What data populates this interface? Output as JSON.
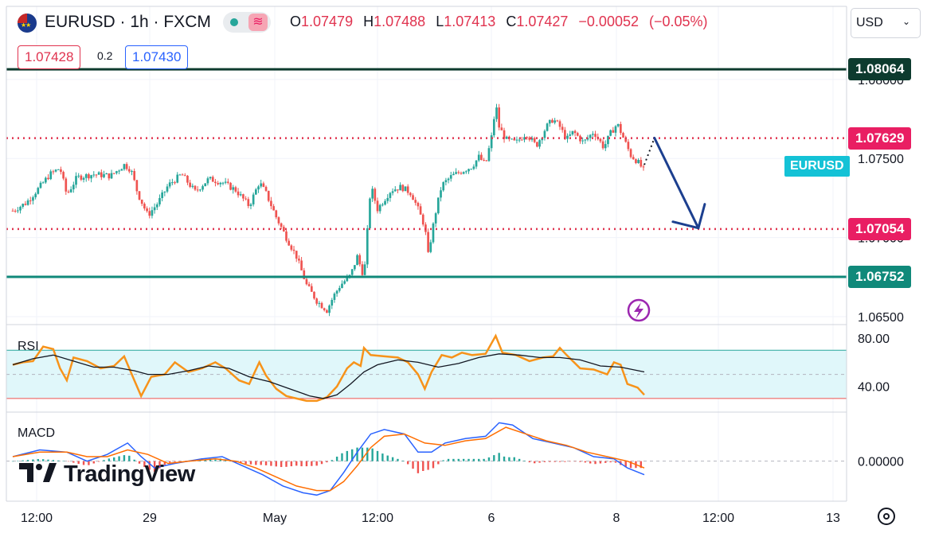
{
  "header": {
    "symbol": "EURUSD",
    "interval": "1h",
    "exchange": "FXCM",
    "title": "EURUSD · 1h · FXCM",
    "ohlc": {
      "o_label": "O",
      "o": "1.07479",
      "h_label": "H",
      "h": "1.07488",
      "l_label": "L",
      "l": "1.07413",
      "c_label": "C",
      "c": "1.07427",
      "change": "−0.00052",
      "change_pct": "(−0.05%)"
    },
    "currency": "USD"
  },
  "trade": {
    "sell_price": "1.07428",
    "spread": "0.2",
    "buy_price": "1.07430"
  },
  "levels": [
    {
      "value": "1.08064",
      "color": "#0d3b2e",
      "style": "solid"
    },
    {
      "value": "1.07629",
      "color": "#e0334f",
      "style": "dotted"
    },
    {
      "value": "1.07054",
      "color": "#e0334f",
      "style": "dotted"
    },
    {
      "value": "1.06752",
      "color": "#10897a",
      "style": "solid"
    }
  ],
  "symbol_tag": "EURUSD",
  "colors": {
    "up": "#26a69a",
    "down": "#ef5350",
    "rsi": "#f7931a",
    "rsi_ma": "#131722",
    "macd": "#2962ff",
    "signal": "#ff6d00",
    "arrow": "#1c3f8f"
  },
  "rsi_label": "RSI",
  "macd_label": "MACD",
  "brand": "TradingView",
  "chart_data": {
    "type": "candlestick",
    "price_axis": {
      "ylim": [
        1.0645,
        1.0815
      ],
      "ticks": [
        "1.08000",
        "1.07500",
        "1.07000",
        "1.06500"
      ]
    },
    "time_axis": {
      "ticks": [
        "12:00",
        "29",
        "May",
        "12:00",
        "6",
        "8",
        "12:00",
        "13"
      ]
    },
    "anchors": [
      [
        0,
        1.0717
      ],
      [
        4,
        1.0722
      ],
      [
        8,
        1.0732
      ],
      [
        11,
        1.074
      ],
      [
        14,
        1.0744
      ],
      [
        16,
        1.0727
      ],
      [
        19,
        1.0738
      ],
      [
        24,
        1.074
      ],
      [
        29,
        1.0739
      ],
      [
        33,
        1.0746
      ],
      [
        35,
        1.0743
      ],
      [
        37,
        1.0728
      ],
      [
        40,
        1.0714
      ],
      [
        43,
        1.0722
      ],
      [
        46,
        1.0733
      ],
      [
        50,
        1.074
      ],
      [
        54,
        1.0729
      ],
      [
        58,
        1.0737
      ],
      [
        62,
        1.0735
      ],
      [
        66,
        1.073
      ],
      [
        70,
        1.072
      ],
      [
        73,
        1.0735
      ],
      [
        75,
        1.0728
      ],
      [
        78,
        1.0713
      ],
      [
        81,
        1.07
      ],
      [
        84,
        1.0688
      ],
      [
        87,
        1.067
      ],
      [
        90,
        1.066
      ],
      [
        93,
        1.0654
      ],
      [
        95,
        1.0663
      ],
      [
        97,
        1.067
      ],
      [
        100,
        1.0676
      ],
      [
        102,
        1.0688
      ],
      [
        104,
        1.0675
      ],
      [
        106,
        1.0733
      ],
      [
        108,
        1.0718
      ],
      [
        112,
        1.073
      ],
      [
        115,
        1.0732
      ],
      [
        118,
        1.0728
      ],
      [
        120,
        1.0718
      ],
      [
        122,
        1.0707
      ],
      [
        123,
        1.0689
      ],
      [
        125,
        1.0714
      ],
      [
        127,
        1.0733
      ],
      [
        130,
        1.0739
      ],
      [
        133,
        1.0742
      ],
      [
        136,
        1.0745
      ],
      [
        138,
        1.0751
      ],
      [
        140,
        1.0746
      ],
      [
        142,
        1.0766
      ],
      [
        143,
        1.0785
      ],
      [
        144,
        1.077
      ],
      [
        146,
        1.0762
      ],
      [
        149,
        1.076
      ],
      [
        152,
        1.0766
      ],
      [
        155,
        1.0758
      ],
      [
        158,
        1.077
      ],
      [
        160,
        1.0775
      ],
      [
        162,
        1.077
      ],
      [
        164,
        1.0762
      ],
      [
        166,
        1.0767
      ],
      [
        169,
        1.076
      ],
      [
        172,
        1.0767
      ],
      [
        175,
        1.0757
      ],
      [
        177,
        1.0766
      ],
      [
        179,
        1.0772
      ],
      [
        181,
        1.0762
      ],
      [
        183,
        1.0752
      ],
      [
        185,
        1.0748
      ],
      [
        187,
        1.0742
      ]
    ],
    "rsi": {
      "ylim": [
        20,
        90
      ],
      "ticks": [
        "80.00",
        "40.00"
      ],
      "band": [
        30,
        70
      ],
      "values": [
        [
          0,
          58
        ],
        [
          3,
          60
        ],
        [
          6,
          61
        ],
        [
          9,
          73
        ],
        [
          12,
          71
        ],
        [
          14,
          55
        ],
        [
          16,
          45
        ],
        [
          18,
          64
        ],
        [
          22,
          61
        ],
        [
          26,
          55
        ],
        [
          30,
          57
        ],
        [
          33,
          65
        ],
        [
          36,
          45
        ],
        [
          38,
          32
        ],
        [
          41,
          48
        ],
        [
          45,
          50
        ],
        [
          48,
          60
        ],
        [
          52,
          52
        ],
        [
          56,
          55
        ],
        [
          60,
          60
        ],
        [
          63,
          55
        ],
        [
          67,
          45
        ],
        [
          70,
          42
        ],
        [
          73,
          60
        ],
        [
          75,
          49
        ],
        [
          78,
          38
        ],
        [
          81,
          32
        ],
        [
          84,
          30
        ],
        [
          87,
          28
        ],
        [
          90,
          28
        ],
        [
          93,
          31
        ],
        [
          96,
          40
        ],
        [
          99,
          55
        ],
        [
          101,
          60
        ],
        [
          103,
          57
        ],
        [
          104,
          72
        ],
        [
          106,
          66
        ],
        [
          110,
          65
        ],
        [
          114,
          64
        ],
        [
          117,
          60
        ],
        [
          120,
          50
        ],
        [
          122,
          38
        ],
        [
          124,
          52
        ],
        [
          127,
          66
        ],
        [
          130,
          64
        ],
        [
          133,
          68
        ],
        [
          136,
          66
        ],
        [
          140,
          67
        ],
        [
          143,
          82
        ],
        [
          145,
          68
        ],
        [
          149,
          66
        ],
        [
          153,
          61
        ],
        [
          157,
          64
        ],
        [
          160,
          65
        ],
        [
          162,
          72
        ],
        [
          164,
          66
        ],
        [
          168,
          55
        ],
        [
          172,
          54
        ],
        [
          176,
          50
        ],
        [
          178,
          60
        ],
        [
          180,
          58
        ],
        [
          182,
          42
        ],
        [
          185,
          39
        ],
        [
          187,
          33
        ]
      ],
      "ma": [
        [
          0,
          58
        ],
        [
          6,
          63
        ],
        [
          12,
          66
        ],
        [
          18,
          61
        ],
        [
          24,
          56
        ],
        [
          30,
          56
        ],
        [
          36,
          53
        ],
        [
          40,
          50
        ],
        [
          46,
          50
        ],
        [
          52,
          53
        ],
        [
          58,
          57
        ],
        [
          64,
          55
        ],
        [
          70,
          48
        ],
        [
          76,
          44
        ],
        [
          82,
          38
        ],
        [
          88,
          32
        ],
        [
          92,
          30
        ],
        [
          96,
          33
        ],
        [
          100,
          42
        ],
        [
          104,
          52
        ],
        [
          108,
          58
        ],
        [
          114,
          62
        ],
        [
          120,
          60
        ],
        [
          126,
          56
        ],
        [
          132,
          59
        ],
        [
          138,
          64
        ],
        [
          144,
          67
        ],
        [
          150,
          66
        ],
        [
          156,
          64
        ],
        [
          162,
          64
        ],
        [
          168,
          62
        ],
        [
          174,
          57
        ],
        [
          180,
          56
        ],
        [
          187,
          52
        ]
      ]
    },
    "macd": {
      "ylim": [
        -0.0017,
        0.0021
      ],
      "ticks": [
        "0.00000"
      ],
      "macd": [
        [
          0,
          0.0002
        ],
        [
          8,
          0.0005
        ],
        [
          16,
          0.0004
        ],
        [
          22,
          0.0
        ],
        [
          28,
          0.0003
        ],
        [
          34,
          0.0008
        ],
        [
          38,
          0.0002
        ],
        [
          42,
          -0.0003
        ],
        [
          48,
          -0.0001
        ],
        [
          56,
          0.0001
        ],
        [
          62,
          0.0002
        ],
        [
          68,
          -0.0002
        ],
        [
          74,
          -0.0006
        ],
        [
          80,
          -0.0011
        ],
        [
          86,
          -0.0014
        ],
        [
          90,
          -0.0015
        ],
        [
          94,
          -0.0013
        ],
        [
          98,
          -0.0005
        ],
        [
          102,
          0.0004
        ],
        [
          106,
          0.0012
        ],
        [
          110,
          0.0014
        ],
        [
          116,
          0.0012
        ],
        [
          120,
          0.0004
        ],
        [
          124,
          0.0004
        ],
        [
          128,
          0.0008
        ],
        [
          134,
          0.001
        ],
        [
          140,
          0.0011
        ],
        [
          144,
          0.0017
        ],
        [
          148,
          0.0016
        ],
        [
          154,
          0.001
        ],
        [
          160,
          0.0008
        ],
        [
          166,
          0.0006
        ],
        [
          172,
          0.0002
        ],
        [
          178,
          0.0001
        ],
        [
          182,
          -0.0003
        ],
        [
          187,
          -0.0006
        ]
      ],
      "signal": [
        [
          0,
          0.0002
        ],
        [
          8,
          0.0004
        ],
        [
          16,
          0.0004
        ],
        [
          22,
          0.0002
        ],
        [
          28,
          0.0002
        ],
        [
          34,
          0.0005
        ],
        [
          40,
          0.0003
        ],
        [
          46,
          -0.0001
        ],
        [
          52,
          0.0
        ],
        [
          60,
          0.0001
        ],
        [
          66,
          0.0
        ],
        [
          72,
          -0.0003
        ],
        [
          78,
          -0.0007
        ],
        [
          84,
          -0.0011
        ],
        [
          90,
          -0.0013
        ],
        [
          94,
          -0.0013
        ],
        [
          98,
          -0.0009
        ],
        [
          102,
          -0.0002
        ],
        [
          106,
          0.0006
        ],
        [
          110,
          0.0011
        ],
        [
          116,
          0.0012
        ],
        [
          122,
          0.0008
        ],
        [
          128,
          0.0007
        ],
        [
          134,
          0.0009
        ],
        [
          140,
          0.001
        ],
        [
          146,
          0.0015
        ],
        [
          152,
          0.0012
        ],
        [
          158,
          0.0009
        ],
        [
          164,
          0.0007
        ],
        [
          170,
          0.0004
        ],
        [
          176,
          0.0002
        ],
        [
          182,
          0.0
        ],
        [
          187,
          -0.0003
        ]
      ]
    },
    "projection": {
      "start": [
        187,
        1.0746
      ],
      "from": [
        190,
        1.0763
      ],
      "to": [
        203,
        1.0706
      ]
    }
  }
}
